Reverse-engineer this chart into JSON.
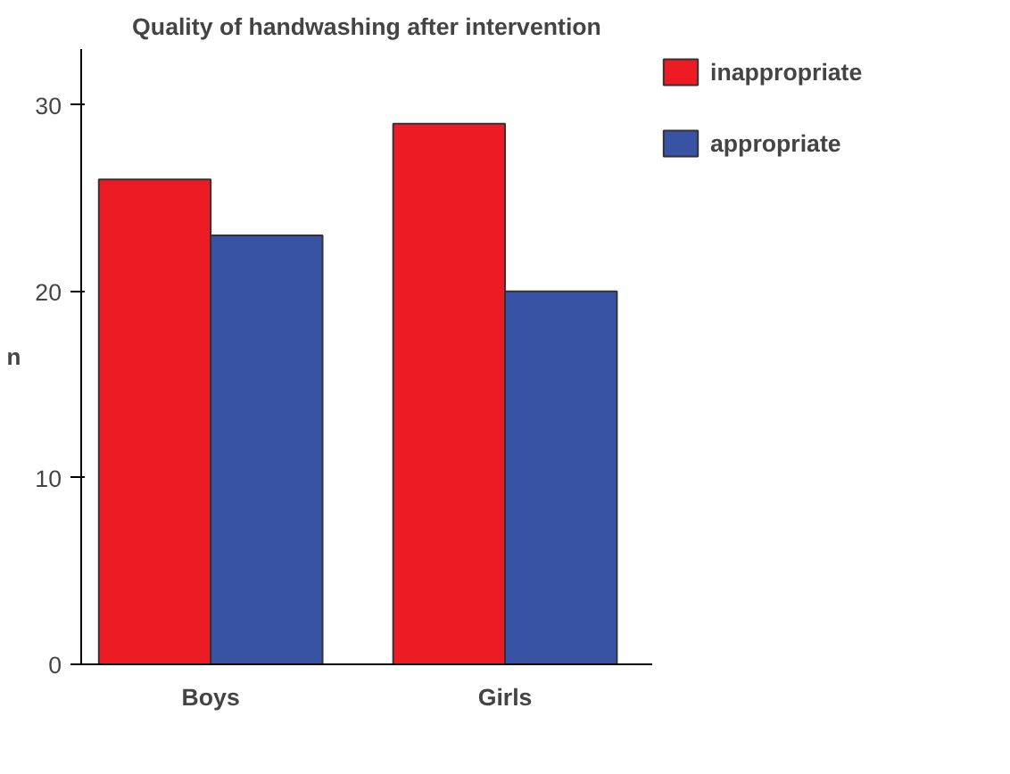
{
  "chart_data": {
    "type": "bar",
    "title": "Quality of handwashing after intervention",
    "ylabel": "n",
    "categories": [
      "Boys",
      "Girls"
    ],
    "series": [
      {
        "name": "inappropriate",
        "color": "#ed1c24",
        "values": [
          26,
          29
        ]
      },
      {
        "name": "appropriate",
        "color": "#3953a4",
        "values": [
          23,
          20
        ]
      }
    ],
    "ylim": [
      0,
      33
    ],
    "yticks": [
      0,
      10,
      20,
      30
    ],
    "grid": false,
    "legend": "top right"
  }
}
